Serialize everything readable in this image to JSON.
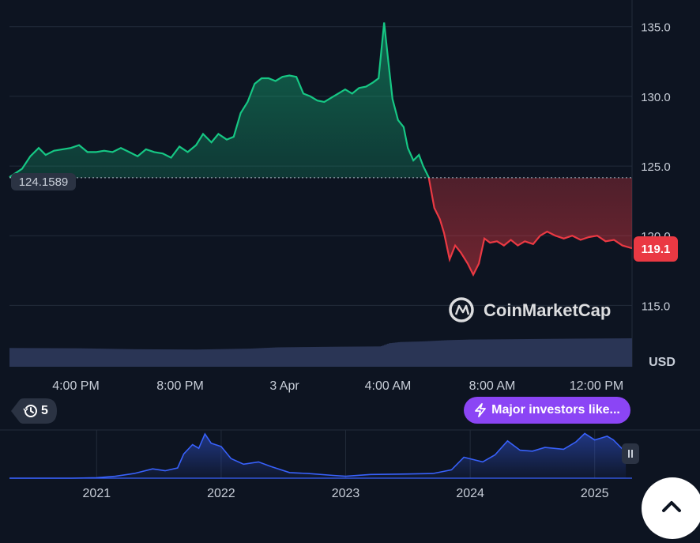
{
  "chart_data": [
    {
      "type": "area",
      "role": "main-price",
      "currency": "USD",
      "y_ticks": [
        135.0,
        130.0,
        125.0,
        120.0,
        115.0
      ],
      "y_tick_labels": [
        "135.0",
        "130.0",
        "125.0",
        "120.0",
        "115.0"
      ],
      "ylim": [
        110.6,
        136.8
      ],
      "x_tick_labels": [
        "4:00 PM",
        "8:00 PM",
        "3 Apr",
        "4:00 AM",
        "8:00 AM",
        "12:00 PM"
      ],
      "baseline_value": 124.1589,
      "baseline_label": "124.1589",
      "current_value": 119.1,
      "current_label": "119.1",
      "colors": {
        "up": "#16c784",
        "down": "#ea3943",
        "volume": "#2a3555"
      },
      "price_series": [
        [
          0.0,
          124.2
        ],
        [
          0.45,
          124.8
        ],
        [
          0.75,
          125.7
        ],
        [
          1.05,
          126.3
        ],
        [
          1.3,
          125.8
        ],
        [
          1.6,
          126.1
        ],
        [
          1.9,
          126.2
        ],
        [
          2.2,
          126.3
        ],
        [
          2.5,
          126.5
        ],
        [
          2.8,
          126.0
        ],
        [
          3.1,
          126.0
        ],
        [
          3.4,
          126.1
        ],
        [
          3.7,
          126.0
        ],
        [
          4.0,
          126.3
        ],
        [
          4.3,
          126.0
        ],
        [
          4.6,
          125.7
        ],
        [
          4.9,
          126.2
        ],
        [
          5.2,
          126.0
        ],
        [
          5.5,
          125.9
        ],
        [
          5.8,
          125.6
        ],
        [
          6.1,
          126.4
        ],
        [
          6.4,
          126.0
        ],
        [
          6.7,
          126.5
        ],
        [
          6.95,
          127.3
        ],
        [
          7.25,
          126.7
        ],
        [
          7.5,
          127.3
        ],
        [
          7.8,
          126.9
        ],
        [
          8.05,
          127.1
        ],
        [
          8.3,
          128.8
        ],
        [
          8.55,
          129.6
        ],
        [
          8.8,
          130.9
        ],
        [
          9.05,
          131.3
        ],
        [
          9.3,
          131.3
        ],
        [
          9.55,
          131.1
        ],
        [
          9.8,
          131.4
        ],
        [
          10.05,
          131.5
        ],
        [
          10.3,
          131.4
        ],
        [
          10.55,
          130.2
        ],
        [
          10.8,
          130.0
        ],
        [
          11.05,
          129.7
        ],
        [
          11.3,
          129.6
        ],
        [
          11.55,
          129.9
        ],
        [
          11.8,
          130.2
        ],
        [
          12.05,
          130.5
        ],
        [
          12.3,
          130.2
        ],
        [
          12.55,
          130.6
        ],
        [
          12.8,
          130.7
        ],
        [
          13.05,
          131.0
        ],
        [
          13.25,
          131.3
        ],
        [
          13.45,
          135.3
        ],
        [
          13.6,
          132.5
        ],
        [
          13.75,
          129.8
        ],
        [
          13.95,
          128.3
        ],
        [
          14.15,
          127.8
        ],
        [
          14.3,
          126.3
        ],
        [
          14.5,
          125.4
        ],
        [
          14.7,
          125.8
        ],
        [
          14.85,
          125.0
        ],
        [
          15.05,
          124.2
        ],
        [
          15.25,
          122.0
        ],
        [
          15.45,
          121.2
        ],
        [
          15.6,
          120.2
        ],
        [
          15.8,
          118.3
        ],
        [
          16.0,
          119.3
        ],
        [
          16.2,
          118.8
        ],
        [
          16.45,
          118.0
        ],
        [
          16.65,
          117.2
        ],
        [
          16.85,
          118.0
        ],
        [
          17.05,
          119.8
        ],
        [
          17.25,
          119.5
        ],
        [
          17.5,
          119.6
        ],
        [
          17.75,
          119.3
        ],
        [
          18.0,
          119.7
        ],
        [
          18.25,
          119.3
        ],
        [
          18.5,
          119.6
        ],
        [
          18.8,
          119.4
        ],
        [
          19.05,
          120.0
        ],
        [
          19.3,
          120.3
        ],
        [
          19.6,
          120.0
        ],
        [
          19.9,
          119.8
        ],
        [
          20.2,
          120.0
        ],
        [
          20.5,
          119.7
        ],
        [
          20.8,
          119.9
        ],
        [
          21.1,
          120.0
        ],
        [
          21.4,
          119.6
        ],
        [
          21.7,
          119.7
        ],
        [
          22.0,
          119.3
        ],
        [
          22.35,
          119.1
        ]
      ],
      "volume_series": [
        [
          0.0,
          120
        ],
        [
          2.5,
          118
        ],
        [
          4.5,
          112
        ],
        [
          6.7,
          110
        ],
        [
          8.6,
          116
        ],
        [
          9.6,
          124
        ],
        [
          11.7,
          128
        ],
        [
          13.3,
          130
        ],
        [
          13.6,
          150
        ],
        [
          14.0,
          158
        ],
        [
          14.8,
          162
        ],
        [
          15.7,
          170
        ],
        [
          16.5,
          174
        ],
        [
          18.0,
          176
        ],
        [
          19.2,
          178
        ],
        [
          20.5,
          180
        ],
        [
          22.35,
          182
        ]
      ]
    },
    {
      "type": "area",
      "role": "history-navigator",
      "x_tick_labels": [
        "2021",
        "2022",
        "2023",
        "2024",
        "2025"
      ],
      "series": [
        [
          2020.3,
          0.0
        ],
        [
          2020.8,
          0.0
        ],
        [
          2021.0,
          0.01
        ],
        [
          2021.15,
          0.04
        ],
        [
          2021.3,
          0.1
        ],
        [
          2021.45,
          0.2
        ],
        [
          2021.55,
          0.16
        ],
        [
          2021.65,
          0.22
        ],
        [
          2021.7,
          0.52
        ],
        [
          2021.77,
          0.72
        ],
        [
          2021.82,
          0.64
        ],
        [
          2021.87,
          0.95
        ],
        [
          2021.92,
          0.75
        ],
        [
          2022.0,
          0.68
        ],
        [
          2022.08,
          0.42
        ],
        [
          2022.18,
          0.3
        ],
        [
          2022.3,
          0.35
        ],
        [
          2022.4,
          0.25
        ],
        [
          2022.55,
          0.12
        ],
        [
          2022.7,
          0.1
        ],
        [
          2022.9,
          0.06
        ],
        [
          2023.0,
          0.04
        ],
        [
          2023.2,
          0.08
        ],
        [
          2023.5,
          0.09
        ],
        [
          2023.7,
          0.1
        ],
        [
          2023.85,
          0.18
        ],
        [
          2023.95,
          0.45
        ],
        [
          2024.1,
          0.35
        ],
        [
          2024.2,
          0.5
        ],
        [
          2024.3,
          0.8
        ],
        [
          2024.4,
          0.6
        ],
        [
          2024.5,
          0.58
        ],
        [
          2024.6,
          0.66
        ],
        [
          2024.75,
          0.62
        ],
        [
          2024.85,
          0.78
        ],
        [
          2024.92,
          0.96
        ],
        [
          2025.0,
          0.82
        ],
        [
          2025.1,
          0.9
        ],
        [
          2025.15,
          0.82
        ],
        [
          2025.25,
          0.55
        ]
      ]
    }
  ],
  "watermark": "CoinMarketCap",
  "currency_label": "USD",
  "history_badge": "5",
  "news_pill": "Major investors like...",
  "icons": [
    "clock-history-icon",
    "lightning-icon",
    "pause-handle-icon",
    "chevron-up-icon",
    "coinmarketcap-logo-icon"
  ]
}
